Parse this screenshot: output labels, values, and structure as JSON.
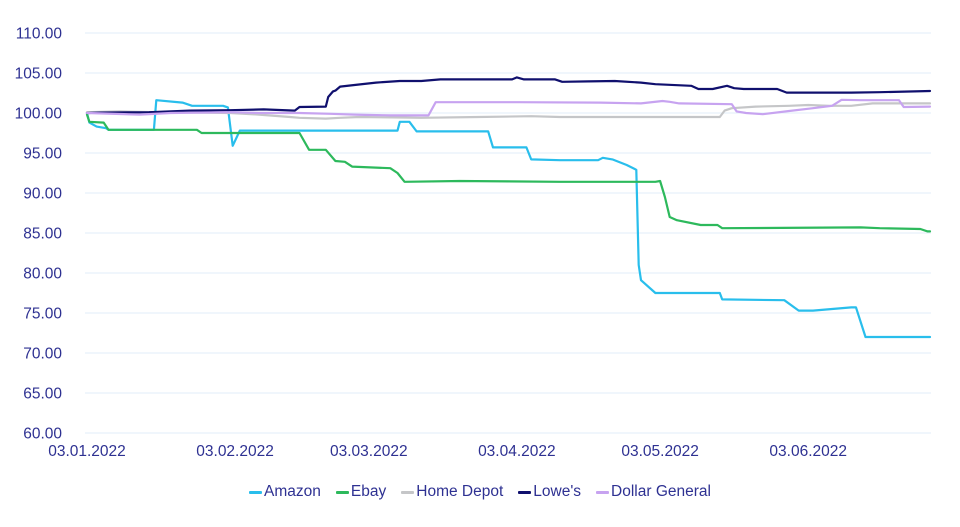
{
  "chart_data": {
    "type": "line",
    "title": "",
    "grid": true,
    "legend_position": "bottom",
    "colors": {
      "axis_text": "#2E3192",
      "gridline": "#E8F1FB",
      "background": "#FFFFFF"
    },
    "y_axis": {
      "min": 60,
      "max": 110,
      "step": 5,
      "decimals": 2
    },
    "x_axis": {
      "tick_labels": [
        "03.01.2022",
        "03.02.2022",
        "03.03.2022",
        "03.04.2022",
        "03.05.2022",
        "03.06.2022"
      ],
      "tick_t": [
        0,
        31,
        59,
        90,
        120,
        151
      ],
      "t_min": 0,
      "t_max": 176.5
    },
    "series": [
      {
        "name": "Amazon",
        "color": "#29BEEC",
        "points": [
          [
            0,
            100
          ],
          [
            0.5,
            98.8
          ],
          [
            2,
            98.3
          ],
          [
            4,
            98.1
          ],
          [
            4.5,
            97.9
          ],
          [
            14,
            97.9
          ],
          [
            14.5,
            101.6
          ],
          [
            20,
            101.3
          ],
          [
            22,
            100.9
          ],
          [
            28.5,
            100.9
          ],
          [
            29.5,
            100.7
          ],
          [
            30.5,
            95.9
          ],
          [
            32,
            97.8
          ],
          [
            65,
            97.8
          ],
          [
            65.5,
            98.9
          ],
          [
            67.5,
            98.9
          ],
          [
            69,
            97.7
          ],
          [
            84,
            97.7
          ],
          [
            85,
            95.7
          ],
          [
            92,
            95.7
          ],
          [
            93,
            94.2
          ],
          [
            99,
            94.1
          ],
          [
            107,
            94.1
          ],
          [
            108,
            94.4
          ],
          [
            110,
            94.2
          ],
          [
            113,
            93.5
          ],
          [
            115,
            92.9
          ],
          [
            115.5,
            81.0
          ],
          [
            116,
            79.1
          ],
          [
            119,
            77.5
          ],
          [
            132.5,
            77.5
          ],
          [
            133,
            76.7
          ],
          [
            146,
            76.6
          ],
          [
            149,
            75.3
          ],
          [
            152,
            75.3
          ],
          [
            160,
            75.7
          ],
          [
            161,
            75.7
          ],
          [
            163,
            72.0
          ],
          [
            176.5,
            72.0
          ]
        ]
      },
      {
        "name": "Ebay",
        "color": "#2DB95C",
        "points": [
          [
            0,
            99.8
          ],
          [
            0.5,
            98.9
          ],
          [
            3.5,
            98.8
          ],
          [
            4.5,
            97.9
          ],
          [
            23,
            97.9
          ],
          [
            24,
            97.5
          ],
          [
            44.5,
            97.5
          ],
          [
            46.5,
            95.4
          ],
          [
            50,
            95.4
          ],
          [
            52,
            94.0
          ],
          [
            54,
            93.9
          ],
          [
            55.5,
            93.3
          ],
          [
            63.5,
            93.1
          ],
          [
            65,
            92.5
          ],
          [
            66.5,
            91.4
          ],
          [
            78,
            91.5
          ],
          [
            99,
            91.4
          ],
          [
            119,
            91.4
          ],
          [
            120,
            91.5
          ],
          [
            121,
            89.5
          ],
          [
            122,
            87.0
          ],
          [
            123.5,
            86.6
          ],
          [
            128.5,
            86.0
          ],
          [
            132,
            86.0
          ],
          [
            133,
            85.6
          ],
          [
            162,
            85.7
          ],
          [
            166,
            85.6
          ],
          [
            174.5,
            85.5
          ],
          [
            176,
            85.2
          ],
          [
            176.5,
            85.2
          ]
        ]
      },
      {
        "name": "Home Depot",
        "color": "#C5C6C8",
        "points": [
          [
            0,
            100.1
          ],
          [
            7,
            100.2
          ],
          [
            15,
            100.1
          ],
          [
            30,
            100.0
          ],
          [
            36,
            99.8
          ],
          [
            42.5,
            99.5
          ],
          [
            44.5,
            99.4
          ],
          [
            50,
            99.3
          ],
          [
            53,
            99.4
          ],
          [
            57,
            99.5
          ],
          [
            70,
            99.4
          ],
          [
            82,
            99.5
          ],
          [
            93,
            99.6
          ],
          [
            99,
            99.5
          ],
          [
            116,
            99.5
          ],
          [
            132.5,
            99.5
          ],
          [
            133.5,
            100.3
          ],
          [
            135,
            100.6
          ],
          [
            140,
            100.8
          ],
          [
            147,
            100.9
          ],
          [
            151,
            101.0
          ],
          [
            155.5,
            100.9
          ],
          [
            160,
            100.9
          ],
          [
            164.5,
            101.2
          ],
          [
            170,
            101.2
          ],
          [
            176.5,
            101.2
          ]
        ]
      },
      {
        "name": "Lowe's",
        "color": "#10106E",
        "points": [
          [
            0,
            100.0
          ],
          [
            3,
            100.05
          ],
          [
            13,
            100.1
          ],
          [
            21.5,
            100.3
          ],
          [
            30,
            100.35
          ],
          [
            37,
            100.45
          ],
          [
            43.5,
            100.3
          ],
          [
            44.5,
            100.75
          ],
          [
            50,
            100.8
          ],
          [
            50.5,
            102.0
          ],
          [
            51.5,
            102.7
          ],
          [
            52,
            102.8
          ],
          [
            53,
            103.3
          ],
          [
            56,
            103.5
          ],
          [
            60.5,
            103.8
          ],
          [
            65.5,
            104.0
          ],
          [
            70,
            104.0
          ],
          [
            74,
            104.2
          ],
          [
            89,
            104.2
          ],
          [
            90,
            104.45
          ],
          [
            91.5,
            104.2
          ],
          [
            98,
            104.2
          ],
          [
            99.5,
            103.9
          ],
          [
            105,
            103.95
          ],
          [
            110.5,
            104.0
          ],
          [
            116,
            103.8
          ],
          [
            119,
            103.6
          ],
          [
            126.5,
            103.4
          ],
          [
            128,
            103.0
          ],
          [
            131,
            103.0
          ],
          [
            134,
            103.4
          ],
          [
            135.5,
            103.1
          ],
          [
            137.5,
            103.0
          ],
          [
            144.5,
            103.0
          ],
          [
            146.5,
            102.55
          ],
          [
            160,
            102.55
          ],
          [
            166,
            102.6
          ],
          [
            176.5,
            102.75
          ]
        ]
      },
      {
        "name": "Dollar General",
        "color": "#C7A3F0",
        "points": [
          [
            0,
            100.0
          ],
          [
            11,
            99.8
          ],
          [
            17.5,
            100.0
          ],
          [
            30,
            100.1
          ],
          [
            36,
            100.0
          ],
          [
            44.5,
            100.0
          ],
          [
            51,
            99.9
          ],
          [
            56,
            99.8
          ],
          [
            63.5,
            99.7
          ],
          [
            71.5,
            99.7
          ],
          [
            73,
            101.35
          ],
          [
            90.5,
            101.35
          ],
          [
            107.5,
            101.3
          ],
          [
            116,
            101.2
          ],
          [
            120.5,
            101.5
          ],
          [
            122,
            101.4
          ],
          [
            124,
            101.2
          ],
          [
            135,
            101.1
          ],
          [
            136,
            100.2
          ],
          [
            138,
            100.0
          ],
          [
            141.5,
            99.85
          ],
          [
            147,
            100.25
          ],
          [
            152,
            100.6
          ],
          [
            156,
            100.9
          ],
          [
            158,
            101.65
          ],
          [
            162,
            101.6
          ],
          [
            170,
            101.6
          ],
          [
            171,
            100.75
          ],
          [
            176.5,
            100.8
          ]
        ]
      }
    ]
  }
}
